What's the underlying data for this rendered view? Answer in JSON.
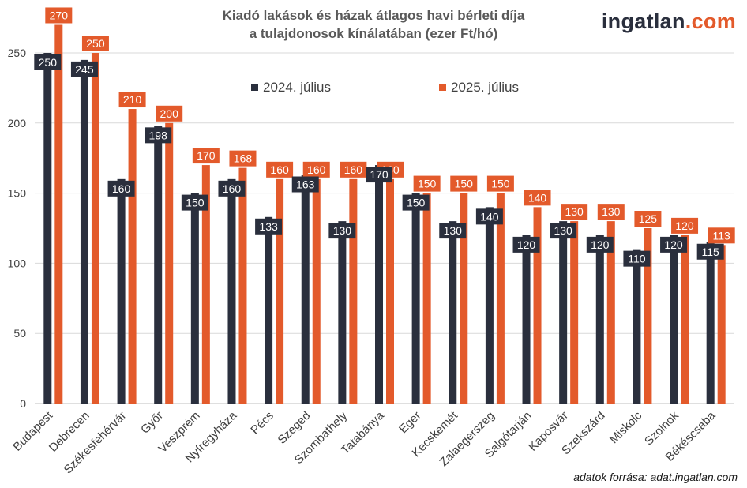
{
  "title_line1": "Kiadó lakások és házak átlagos havi bérleti díja",
  "title_line2": "a tulajdonosok kínálatában (ezer Ft/hó)",
  "logo": {
    "part1": "ingatlan",
    "part2": ".com"
  },
  "source": "adatok forrása: adat.ingatlan.com",
  "colors": {
    "series1": "#2a2f3d",
    "series2": "#e35a2b",
    "grid": "#d9d9d9",
    "text": "#404040"
  },
  "chart_data": {
    "type": "bar",
    "categories": [
      "Budapest",
      "Debrecen",
      "Székesfehérvár",
      "Győr",
      "Veszprém",
      "Nyíregyháza",
      "Pécs",
      "Szeged",
      "Szombathely",
      "Tatabánya",
      "Eger",
      "Kecskemét",
      "Zalaegerszeg",
      "Salgótarján",
      "Kaposvár",
      "Szekszárd",
      "Miskolc",
      "Szolnok",
      "Békéscsaba"
    ],
    "series": [
      {
        "name": "2024. július",
        "values": [
          250,
          245,
          160,
          198,
          150,
          160,
          133,
          163,
          130,
          170,
          150,
          130,
          140,
          120,
          130,
          120,
          110,
          120,
          115
        ]
      },
      {
        "name": "2025. július",
        "values": [
          270,
          250,
          210,
          200,
          170,
          168,
          160,
          160,
          160,
          160,
          150,
          150,
          150,
          140,
          130,
          130,
          125,
          120,
          113
        ]
      }
    ],
    "yticks": [
      0,
      50,
      100,
      150,
      200,
      250
    ],
    "ylim": [
      0,
      270
    ],
    "grid": true,
    "legend_position": "top-center"
  }
}
